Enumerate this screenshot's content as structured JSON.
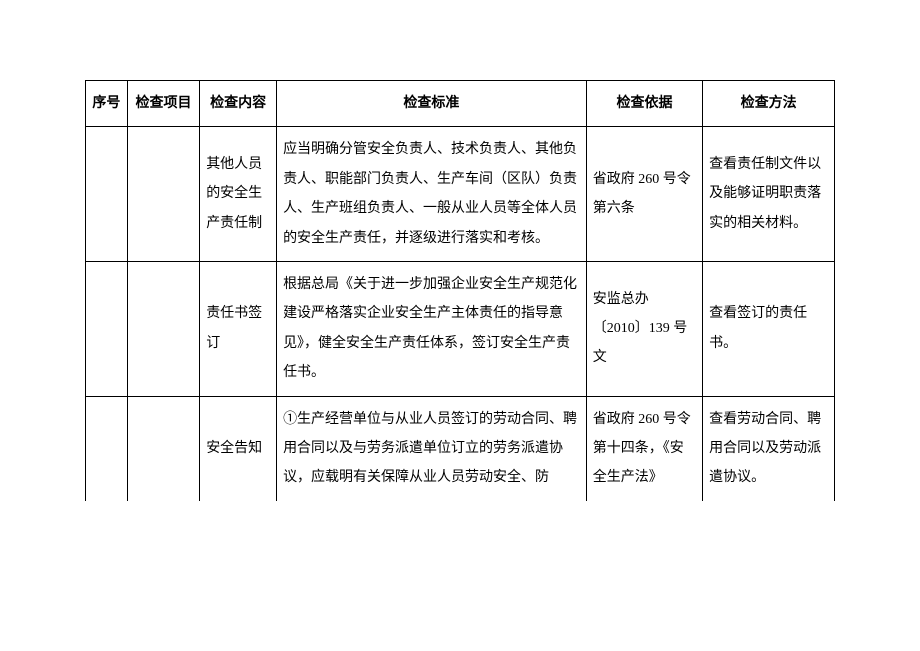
{
  "table": {
    "columns": {
      "seq": "序号",
      "item": "检查项目",
      "content": "检查内容",
      "standard": "检查标准",
      "basis": "检查依据",
      "method": "检查方法"
    },
    "rows": [
      {
        "seq": "",
        "item": "",
        "content": "其他人员的安全生产责任制",
        "standard": "应当明确分管安全负责人、技术负责人、其他负责人、职能部门负责人、生产车间（区队）负责人、生产班组负责人、一般从业人员等全体人员的安全生产责任，并逐级进行落实和考核。",
        "basis": "省政府 260 号令第六条",
        "method": "查看责任制文件以及能够证明职责落实的相关材料。"
      },
      {
        "seq": "",
        "item": "",
        "content": "责任书签订",
        "standard": "根据总局《关于进一步加强企业安全生产规范化建设严格落实企业安全生产主体责任的指导意见》，健全安全生产责任体系，签订安全生产责任书。",
        "basis": "安监总办〔2010〕139 号文",
        "method": "查看签订的责任书。"
      },
      {
        "seq": "",
        "item": "",
        "content": "安全告知",
        "standard": "①生产经营单位与从业人员签订的劳动合同、聘用合同以及与劳务派遣单位订立的劳务派遣协议，应载明有关保障从业人员劳动安全、防",
        "basis": "省政府 260 号令第十四条，《安全生产法》",
        "method": "查看劳动合同、聘用合同以及劳动派遣协议。"
      }
    ],
    "styling": {
      "border_color": "#000000",
      "background_color": "#ffffff",
      "text_color": "#000000",
      "font_size": 14,
      "line_height": 2.1,
      "header_font_weight": "bold"
    }
  }
}
